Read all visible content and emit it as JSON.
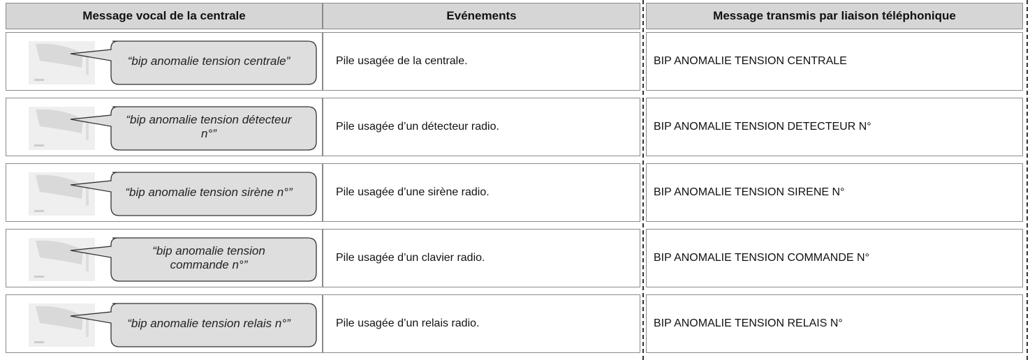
{
  "header": {
    "columns": [
      "Message vocal de la centrale",
      "Evénements",
      "Message transmis par liaison téléphonique"
    ]
  },
  "rows": [
    {
      "voice": "“bip anomalie tension centrale”",
      "event": "Pile usagée de la centrale.",
      "message": "BIP ANOMALIE TENSION CENTRALE"
    },
    {
      "voice": "“bip anomalie tension détecteur n°”",
      "event": "Pile usagée d’un détecteur radio.",
      "message": "BIP ANOMALIE TENSION DETECTEUR N°"
    },
    {
      "voice": "“bip anomalie tension sirène n°”",
      "event": "Pile usagée d’une sirène radio.",
      "message": "BIP ANOMALIE TENSION SIRENE N°"
    },
    {
      "voice": "“bip anomalie tension commande n°”",
      "event": "Pile usagée d’un clavier radio.",
      "message": "BIP ANOMALIE TENSION COMMANDE N°"
    },
    {
      "voice": "“bip anomalie tension relais n°”",
      "event": "Pile usagée d’un relais radio.",
      "message": "BIP ANOMALIE TENSION RELAIS N°"
    }
  ]
}
